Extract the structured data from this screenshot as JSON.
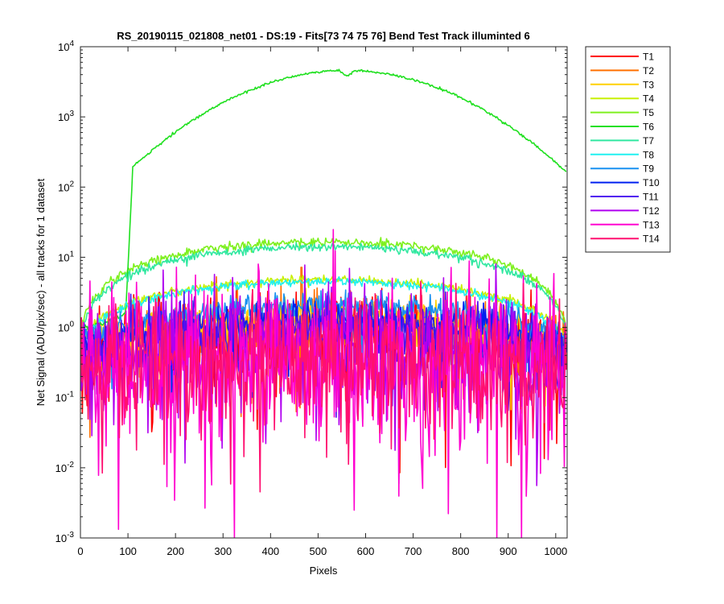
{
  "chart_data": {
    "type": "line",
    "title": "RS_20190115_021808_net01 - DS:19 - Fits[73  74  75  76]   Bend Test        Track illuminted 6",
    "xlabel": "Pixels",
    "ylabel": "Net Signal (ADU/pix/sec) - all tracks for 1 dataset",
    "xlim": [
      0,
      1024
    ],
    "ylim": [
      0.001,
      10000
    ],
    "yscale": "log",
    "x_ticks": [
      "0",
      "100",
      "200",
      "300",
      "400",
      "500",
      "600",
      "700",
      "800",
      "900",
      "1000"
    ],
    "y_ticks": [
      {
        "base": "10",
        "exp": "4"
      },
      {
        "base": "10",
        "exp": "3"
      },
      {
        "base": "10",
        "exp": "2"
      },
      {
        "base": "10",
        "exp": "1"
      },
      {
        "base": "10",
        "exp": "0"
      },
      {
        "base": "10",
        "exp": "-1"
      },
      {
        "base": "10",
        "exp": "-2"
      },
      {
        "base": "10",
        "exp": "-3"
      }
    ],
    "legend_position": "outside-right",
    "series": [
      {
        "name": "T1",
        "color": "#ff0000",
        "shape": "noise",
        "peak": 0.8,
        "edge": 0.3,
        "spread": 1.0
      },
      {
        "name": "T2",
        "color": "#ff7000",
        "shape": "noise",
        "peak": 1.0,
        "edge": 0.4,
        "spread": 0.6,
        "spike": {
          "x": 465,
          "y": 7.2
        }
      },
      {
        "name": "T3",
        "color": "#ffd000",
        "shape": "noise",
        "peak": 1.4,
        "edge": 0.5,
        "spread": 0.4
      },
      {
        "name": "T4",
        "color": "#c8f000",
        "shape": "smooth",
        "peak": 4.8,
        "edge": 0.7
      },
      {
        "name": "T5",
        "color": "#7ef01e",
        "shape": "smooth",
        "peak": 16.5,
        "edge": 0.9
      },
      {
        "name": "T6",
        "color": "#20e020",
        "shape": "main",
        "peak": 4600,
        "edge": 0.7
      },
      {
        "name": "T7",
        "color": "#30e8a0",
        "shape": "smooth",
        "peak": 14,
        "edge": 0.8
      },
      {
        "name": "T8",
        "color": "#20f0f0",
        "shape": "smooth",
        "peak": 4.5,
        "edge": 0.6
      },
      {
        "name": "T9",
        "color": "#1890f0",
        "shape": "noise",
        "peak": 2.1,
        "edge": 0.6,
        "spread": 0.25
      },
      {
        "name": "T10",
        "color": "#0020f0",
        "shape": "noise",
        "peak": 1.3,
        "edge": 0.5,
        "spread": 0.35
      },
      {
        "name": "T11",
        "color": "#5010f0",
        "shape": "noise",
        "peak": 0.9,
        "edge": 0.4,
        "spread": 0.6
      },
      {
        "name": "T12",
        "color": "#b000f0",
        "shape": "noise",
        "peak": 0.5,
        "edge": 0.3,
        "spread": 1.2
      },
      {
        "name": "T13",
        "color": "#ff00d0",
        "shape": "noise",
        "peak": 0.3,
        "edge": 0.25,
        "spread": 1.6
      },
      {
        "name": "T14",
        "color": "#ff1070",
        "shape": "noise",
        "peak": 0.3,
        "edge": 0.25,
        "spread": 1.3
      }
    ]
  }
}
